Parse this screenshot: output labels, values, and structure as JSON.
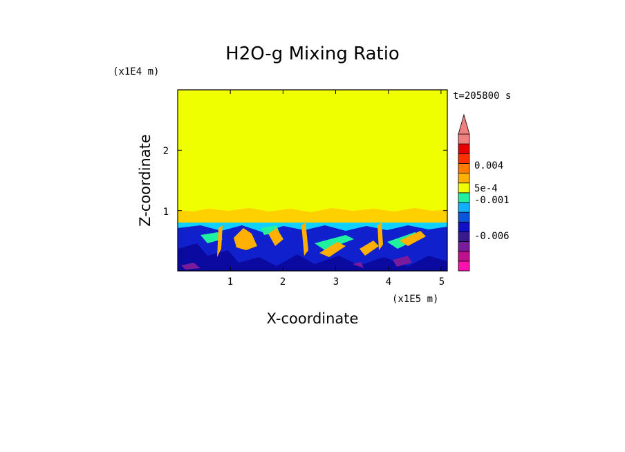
{
  "chart_data": {
    "type": "heatmap",
    "title": "H2O-g Mixing Ratio",
    "xlabel": "X-coordinate",
    "ylabel": "Z-coordinate",
    "x_scale_label": "(x1E5 m)",
    "y_scale_label": "(x1E4 m)",
    "time_label": "t=205800 s",
    "x_ticks": [
      "1",
      "2",
      "3",
      "4",
      "5"
    ],
    "y_ticks": [
      "1",
      "2"
    ],
    "xlim": [
      0,
      5.12
    ],
    "ylim": [
      0,
      3.0
    ],
    "colorbar": {
      "colors": [
        "#ff10b0",
        "#c0108f",
        "#7a1a9c",
        "#3a1a90",
        "#1010c8",
        "#0a55dc",
        "#10b0ff",
        "#20f0a0",
        "#f0ff00",
        "#ffb000",
        "#ff7a00",
        "#ff3000",
        "#e80000",
        "#f08080"
      ],
      "extend": "max",
      "labels": [
        "0.004",
        "5e-4",
        "-0.001",
        "-0.006"
      ]
    },
    "regions": {
      "upper_value_color": "#f0ff00",
      "boundary_band_color": "#ffd000",
      "boundary_height": 0.97,
      "mixed_layer_top": 0.83
    }
  }
}
